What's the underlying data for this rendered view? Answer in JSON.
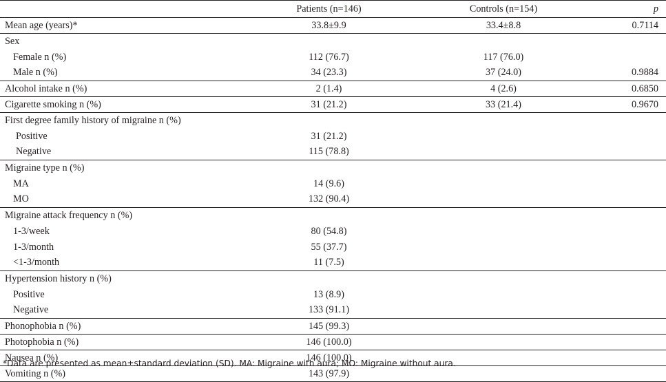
{
  "header": {
    "label": "",
    "patients": "Patients (n=146)",
    "controls": "Controls (n=154)",
    "p": "p"
  },
  "rows": [
    {
      "label": "Mean age (years)*",
      "patients": "33.8±9.9",
      "controls": "33.4±8.8",
      "p": "0.7114"
    },
    {
      "label": "Sex",
      "patients": "",
      "controls": "",
      "p": ""
    },
    {
      "label": "Female n (%)",
      "patients": "112 (76.7)",
      "controls": "117 (76.0)",
      "p": ""
    },
    {
      "label": "Male n (%)",
      "patients": "34 (23.3)",
      "controls": "37 (24.0)",
      "p": "0.9884"
    },
    {
      "label": "Alcohol intake n (%)",
      "patients": "2 (1.4)",
      "controls": "4 (2.6)",
      "p": "0.6850"
    },
    {
      "label": "Cigarette smoking n (%)",
      "patients": "31 (21.2)",
      "controls": "33 (21.4)",
      "p": "0.9670"
    },
    {
      "label": "First degree family history of migraine n (%)",
      "patients": "",
      "controls": "",
      "p": ""
    },
    {
      "label": "Positive",
      "patients": "31 (21.2)",
      "controls": "",
      "p": ""
    },
    {
      "label": "Negative",
      "patients": "115 (78.8)",
      "controls": "",
      "p": ""
    },
    {
      "label": "Migraine type n (%)",
      "patients": "",
      "controls": "",
      "p": ""
    },
    {
      "label": "MA",
      "patients": "14 (9.6)",
      "controls": "",
      "p": ""
    },
    {
      "label": "MO",
      "patients": "132 (90.4)",
      "controls": "",
      "p": ""
    },
    {
      "label": "Migraine attack frequency n (%)",
      "patients": "",
      "controls": "",
      "p": ""
    },
    {
      "label": "1-3/week",
      "patients": "80 (54.8)",
      "controls": "",
      "p": ""
    },
    {
      "label": "1-3/month",
      "patients": "55 (37.7)",
      "controls": "",
      "p": ""
    },
    {
      "label": "<1-3/month",
      "patients": "11 (7.5)",
      "controls": "",
      "p": ""
    },
    {
      "label": "Hypertension history n (%)",
      "patients": "",
      "controls": "",
      "p": ""
    },
    {
      "label": "Positive",
      "patients": "13 (8.9)",
      "controls": "",
      "p": ""
    },
    {
      "label": "Negative",
      "patients": "133 (91.1)",
      "controls": "",
      "p": ""
    },
    {
      "label": "Phonophobia n (%)",
      "patients": "145 (99.3)",
      "controls": "",
      "p": ""
    },
    {
      "label": "Photophobia n (%)",
      "patients": "146 (100.0)",
      "controls": "",
      "p": ""
    },
    {
      "label": "Nausea n (%)",
      "patients": "146 (100.0)",
      "controls": "",
      "p": ""
    },
    {
      "label": "Vomiting n (%)",
      "patients": "143 (97.9)",
      "controls": "",
      "p": ""
    }
  ],
  "footnote": "*Data are presented as mean±standard deviation (SD). MA: Migraine with aura; MO: Migraine without aura."
}
